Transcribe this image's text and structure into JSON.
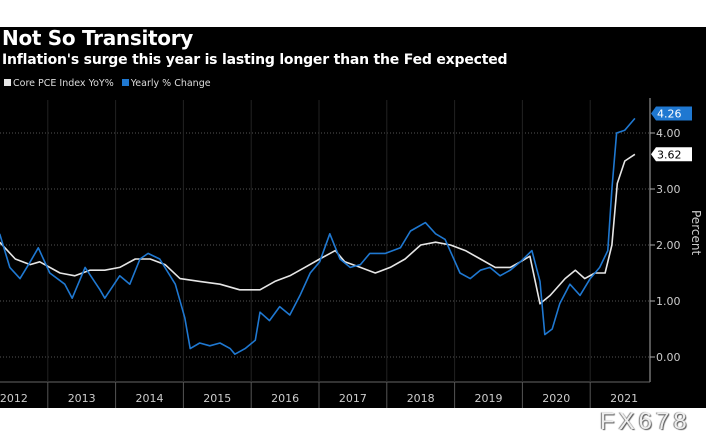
{
  "header": {
    "title": "Not So Transitory",
    "subtitle": "Inflation's surge this year is lasting longer than the Fed expected"
  },
  "watermark": "FX678",
  "chart_data": {
    "type": "line",
    "title": "Not So Transitory",
    "subtitle": "Inflation's surge this year is lasting longer than the Fed expected",
    "ylabel": "Percent",
    "xlabel": "",
    "ylim": [
      -0.45,
      4.6
    ],
    "xlim": [
      2011.7,
      2021.9
    ],
    "yticks": [
      "0.00",
      "1.00",
      "2.00",
      "3.00",
      "4.00"
    ],
    "ytick_values": [
      0,
      1,
      2,
      3,
      4
    ],
    "xticks": [
      "2012",
      "2013",
      "2014",
      "2015",
      "2016",
      "2017",
      "2018",
      "2019",
      "2020",
      "2021"
    ],
    "grid": true,
    "legend_position": "top-left",
    "series": [
      {
        "name": "Core PCE Index YoY%",
        "color": "#e6e6e6",
        "last_label": "3.62",
        "points": [
          [
            2012.29,
            2.05
          ],
          [
            2012.52,
            1.75
          ],
          [
            2012.74,
            1.65
          ],
          [
            2012.88,
            1.7
          ],
          [
            2013.18,
            1.5
          ],
          [
            2013.4,
            1.45
          ],
          [
            2013.62,
            1.55
          ],
          [
            2013.84,
            1.55
          ],
          [
            2014.06,
            1.6
          ],
          [
            2014.29,
            1.75
          ],
          [
            2014.51,
            1.75
          ],
          [
            2014.73,
            1.65
          ],
          [
            2014.95,
            1.4
          ],
          [
            2015.24,
            1.35
          ],
          [
            2015.54,
            1.3
          ],
          [
            2015.83,
            1.2
          ],
          [
            2016.13,
            1.2
          ],
          [
            2016.35,
            1.35
          ],
          [
            2016.57,
            1.45
          ],
          [
            2016.79,
            1.6
          ],
          [
            2017.01,
            1.75
          ],
          [
            2017.24,
            1.9
          ],
          [
            2017.38,
            1.7
          ],
          [
            2017.61,
            1.6
          ],
          [
            2017.83,
            1.5
          ],
          [
            2018.05,
            1.6
          ],
          [
            2018.27,
            1.75
          ],
          [
            2018.5,
            2.0
          ],
          [
            2018.72,
            2.05
          ],
          [
            2018.94,
            2.0
          ],
          [
            2019.16,
            1.9
          ],
          [
            2019.38,
            1.75
          ],
          [
            2019.6,
            1.6
          ],
          [
            2019.82,
            1.6
          ],
          [
            2019.97,
            1.7
          ],
          [
            2020.11,
            1.8
          ],
          [
            2020.26,
            0.95
          ],
          [
            2020.41,
            1.1
          ],
          [
            2020.63,
            1.4
          ],
          [
            2020.78,
            1.55
          ],
          [
            2020.92,
            1.4
          ],
          [
            2021.07,
            1.5
          ],
          [
            2021.22,
            1.5
          ],
          [
            2021.32,
            2.0
          ],
          [
            2021.4,
            3.1
          ],
          [
            2021.51,
            3.5
          ],
          [
            2021.66,
            3.62
          ]
        ]
      },
      {
        "name": "Yearly % Change",
        "color": "#1f78d1",
        "last_label": "4.26",
        "points": [
          [
            2012.29,
            2.2
          ],
          [
            2012.44,
            1.6
          ],
          [
            2012.59,
            1.4
          ],
          [
            2012.74,
            1.7
          ],
          [
            2012.86,
            1.95
          ],
          [
            2013.03,
            1.5
          ],
          [
            2013.25,
            1.3
          ],
          [
            2013.36,
            1.05
          ],
          [
            2013.55,
            1.6
          ],
          [
            2013.77,
            1.2
          ],
          [
            2013.84,
            1.05
          ],
          [
            2014.06,
            1.45
          ],
          [
            2014.21,
            1.3
          ],
          [
            2014.36,
            1.75
          ],
          [
            2014.48,
            1.85
          ],
          [
            2014.65,
            1.75
          ],
          [
            2014.88,
            1.3
          ],
          [
            2015.02,
            0.7
          ],
          [
            2015.1,
            0.15
          ],
          [
            2015.24,
            0.25
          ],
          [
            2015.39,
            0.2
          ],
          [
            2015.54,
            0.25
          ],
          [
            2015.69,
            0.15
          ],
          [
            2015.76,
            0.05
          ],
          [
            2015.91,
            0.15
          ],
          [
            2016.06,
            0.3
          ],
          [
            2016.13,
            0.8
          ],
          [
            2016.27,
            0.65
          ],
          [
            2016.42,
            0.9
          ],
          [
            2016.57,
            0.75
          ],
          [
            2016.72,
            1.1
          ],
          [
            2016.87,
            1.5
          ],
          [
            2017.01,
            1.7
          ],
          [
            2017.16,
            2.2
          ],
          [
            2017.31,
            1.75
          ],
          [
            2017.46,
            1.6
          ],
          [
            2017.61,
            1.65
          ],
          [
            2017.75,
            1.85
          ],
          [
            2017.98,
            1.85
          ],
          [
            2018.2,
            1.95
          ],
          [
            2018.35,
            2.25
          ],
          [
            2018.57,
            2.4
          ],
          [
            2018.72,
            2.2
          ],
          [
            2018.86,
            2.1
          ],
          [
            2019.08,
            1.5
          ],
          [
            2019.23,
            1.4
          ],
          [
            2019.38,
            1.55
          ],
          [
            2019.52,
            1.6
          ],
          [
            2019.67,
            1.45
          ],
          [
            2019.82,
            1.55
          ],
          [
            2019.97,
            1.7
          ],
          [
            2020.14,
            1.9
          ],
          [
            2020.26,
            1.35
          ],
          [
            2020.33,
            0.4
          ],
          [
            2020.44,
            0.5
          ],
          [
            2020.55,
            0.95
          ],
          [
            2020.7,
            1.3
          ],
          [
            2020.85,
            1.1
          ],
          [
            2021.0,
            1.4
          ],
          [
            2021.14,
            1.6
          ],
          [
            2021.26,
            1.9
          ],
          [
            2021.32,
            3.0
          ],
          [
            2021.39,
            4.0
          ],
          [
            2021.51,
            4.05
          ],
          [
            2021.66,
            4.26
          ]
        ]
      }
    ]
  }
}
